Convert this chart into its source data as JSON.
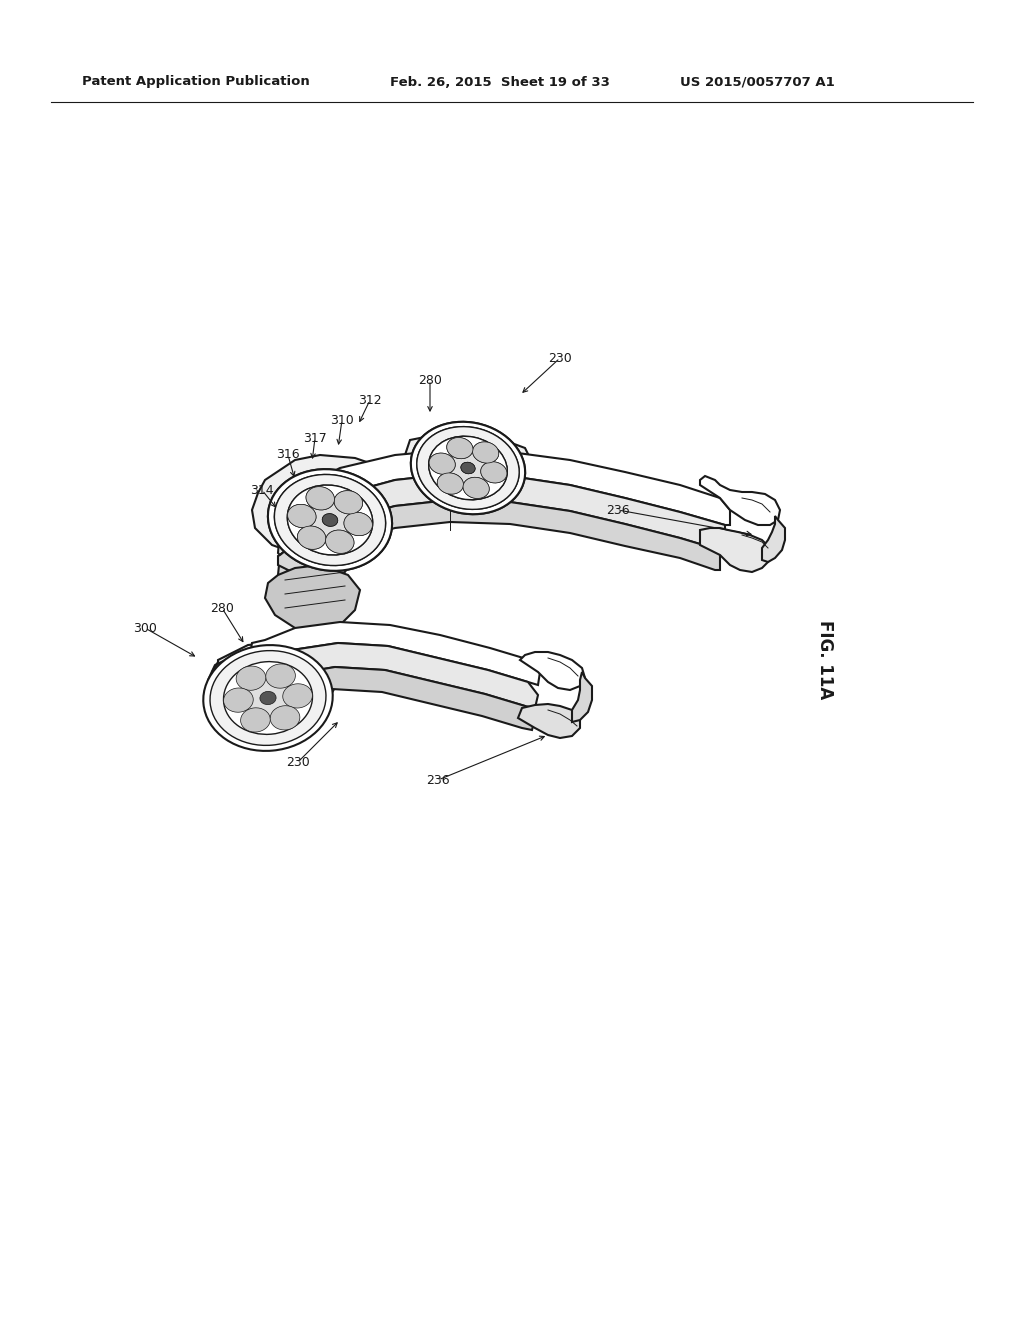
{
  "header_left": "Patent Application Publication",
  "header_center": "Feb. 26, 2015  Sheet 19 of 33",
  "header_right": "US 2015/0057707 A1",
  "fig_label": "FIG. 11A",
  "background_color": "#ffffff",
  "line_color": "#1a1a1a",
  "header_fontsize": 9.5,
  "fig_label_fontsize": 12,
  "annotation_fontsize": 9
}
